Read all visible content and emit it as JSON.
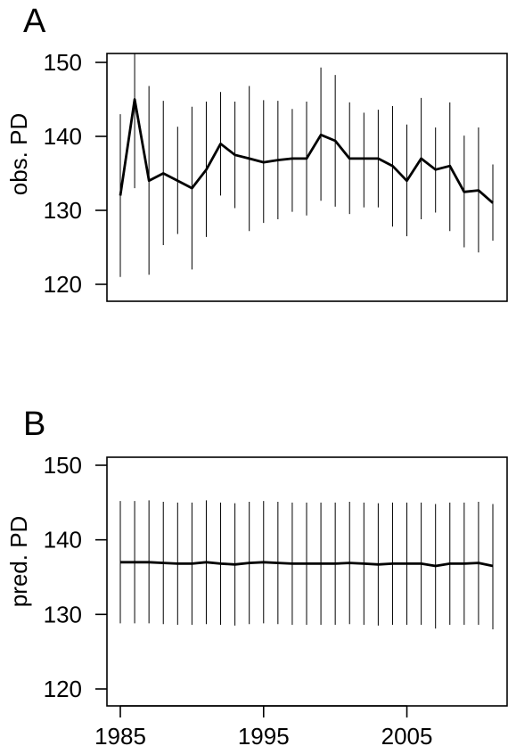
{
  "chart_data": [
    {
      "type": "line",
      "panel_label": "A",
      "title": "",
      "xlabel": "",
      "ylabel": "obs. PD",
      "xlim": [
        1984,
        2012
      ],
      "ylim": [
        119,
        151
      ],
      "ytick_values": [
        120,
        130,
        140,
        150
      ],
      "ytick_labels": [
        "120",
        "130",
        "140",
        "150"
      ],
      "grid": false,
      "x": [
        1985,
        1986,
        1987,
        1988,
        1989,
        1990,
        1991,
        1992,
        1993,
        1994,
        1995,
        1996,
        1997,
        1998,
        1999,
        2000,
        2001,
        2002,
        2003,
        2004,
        2005,
        2006,
        2007,
        2008,
        2009,
        2010,
        2011
      ],
      "series": [
        {
          "values": [
            132,
            145,
            134,
            135,
            134,
            133,
            135.5,
            139,
            137.5,
            137,
            136.5,
            136.8,
            137,
            137,
            140.2,
            139.4,
            137,
            137,
            137,
            136,
            134,
            137,
            135.5,
            136,
            132.5,
            132.7,
            131
          ],
          "lower": [
            121,
            133,
            121.3,
            125.3,
            126.8,
            122,
            126.4,
            132,
            130.3,
            127.2,
            128.3,
            128.8,
            129.8,
            129.3,
            131.3,
            130.5,
            129.5,
            130.4,
            130.4,
            127.8,
            126.5,
            128.8,
            129.7,
            127.2,
            125,
            124.3,
            125.9
          ],
          "upper": [
            143,
            151.3,
            146.8,
            144.8,
            141.3,
            144,
            144.7,
            146,
            144.7,
            146.8,
            144.9,
            144.8,
            143.7,
            144.7,
            149.3,
            148.3,
            144.6,
            143.2,
            143.6,
            144.1,
            141.6,
            145.2,
            141.2,
            144.6,
            140.1,
            141.2,
            136.2
          ]
        }
      ]
    },
    {
      "type": "line",
      "panel_label": "B",
      "title": "",
      "xlabel": "",
      "ylabel": "pred. PD",
      "xlim": [
        1984,
        2012
      ],
      "ylim": [
        119,
        151
      ],
      "ytick_values": [
        120,
        130,
        140,
        150
      ],
      "ytick_labels": [
        "120",
        "130",
        "140",
        "150"
      ],
      "xtick_values": [
        1985,
        1995,
        2005
      ],
      "xtick_labels": [
        "1985",
        "1995",
        "2005"
      ],
      "grid": false,
      "x": [
        1985,
        1986,
        1987,
        1988,
        1989,
        1990,
        1991,
        1992,
        1993,
        1994,
        1995,
        1996,
        1997,
        1998,
        1999,
        2000,
        2001,
        2002,
        2003,
        2004,
        2005,
        2006,
        2007,
        2008,
        2009,
        2010,
        2011
      ],
      "series": [
        {
          "values": [
            137,
            137,
            137,
            136.9,
            136.8,
            136.8,
            137,
            136.8,
            136.7,
            136.9,
            137,
            136.9,
            136.8,
            136.8,
            136.8,
            136.8,
            136.9,
            136.8,
            136.7,
            136.8,
            136.8,
            136.8,
            136.5,
            136.8,
            136.8,
            136.9,
            136.5
          ],
          "lower": [
            128.8,
            128.8,
            128.8,
            128.7,
            128.6,
            128.6,
            128.7,
            128.6,
            128.5,
            128.7,
            128.8,
            128.7,
            128.6,
            128.6,
            128.6,
            128.6,
            128.7,
            128.6,
            128.5,
            128.6,
            128.6,
            128.6,
            128.1,
            128.6,
            128.6,
            128.6,
            128
          ],
          "upper": [
            145.2,
            145.2,
            145.3,
            145.1,
            145,
            145,
            145.3,
            145,
            144.9,
            145.1,
            145.2,
            145.1,
            145,
            145,
            145,
            145,
            145.1,
            145,
            144.9,
            145,
            145,
            145,
            144.8,
            145,
            145,
            145.1,
            144.8
          ]
        }
      ]
    }
  ]
}
